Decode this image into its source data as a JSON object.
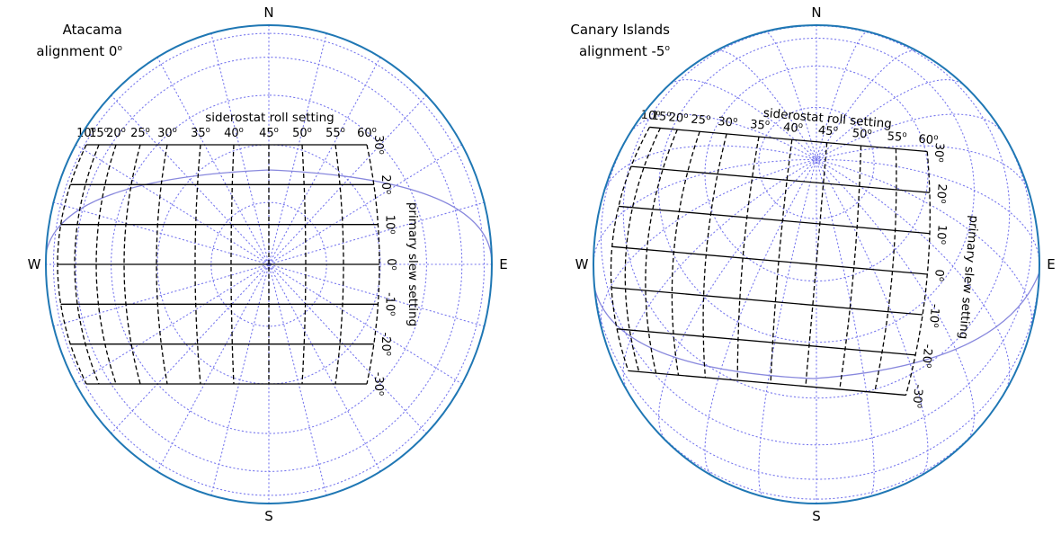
{
  "panels": [
    {
      "site": "Atacama",
      "alignment_text": "alignment  0",
      "alignment_deg": 0,
      "cardinal": {
        "n": "N",
        "s": "S",
        "w": "W",
        "e": "E"
      },
      "roll_axis_label": "siderostat roll setting",
      "slew_axis_label": "primary slew setting",
      "roll_ticks": [
        "10",
        "15",
        "20",
        "25",
        "30",
        "35",
        "40",
        "45",
        "50",
        "55",
        "60"
      ],
      "slew_ticks": [
        "30",
        "20",
        "10",
        "0",
        "-10",
        "-20",
        "-30"
      ],
      "degree_mark": "o"
    },
    {
      "site": "Canary Islands",
      "alignment_text": "alignment -5",
      "alignment_deg": -5,
      "cardinal": {
        "n": "N",
        "s": "S",
        "w": "W",
        "e": "E"
      },
      "roll_axis_label": "siderostat roll setting",
      "slew_axis_label": "primary slew setting",
      "roll_ticks": [
        "10",
        "15",
        "20",
        "25",
        "30",
        "35",
        "40",
        "45",
        "50",
        "55",
        "60"
      ],
      "slew_ticks": [
        "30",
        "20",
        "10",
        "0",
        "-10",
        "-20",
        "-30"
      ],
      "degree_mark": "o"
    }
  ],
  "colors": {
    "outline": "#1f77b4",
    "graticule": "#7777ee",
    "equator": "#8888dd",
    "grid": "#000000"
  }
}
